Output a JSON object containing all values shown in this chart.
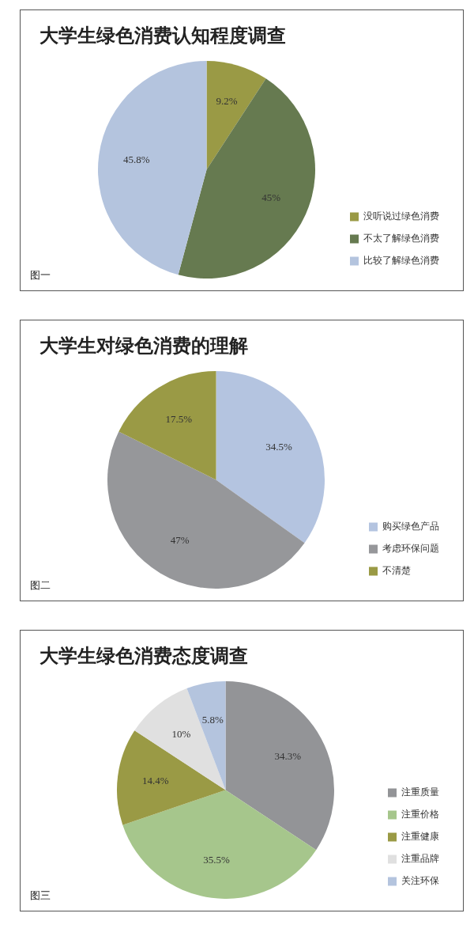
{
  "chart_data": [
    {
      "type": "pie",
      "title": "大学生绿色消费认知程度调查",
      "categories": [
        "没听说过绿色消费",
        "不太了解绿色消费",
        "比较了解绿色消费"
      ],
      "values": [
        9.2,
        45,
        45.8
      ],
      "value_labels": [
        "9.2%",
        "45%",
        "45.8%"
      ],
      "colors": [
        "#9a9a45",
        "#667a50",
        "#b4c4de"
      ],
      "legend": "bottom right",
      "annotations": [
        "图一"
      ]
    },
    {
      "type": "pie",
      "title": "大学生对绿色消费的理解",
      "categories": [
        "购买绿色产品",
        "考虑环保问题",
        "不清楚"
      ],
      "values": [
        34.5,
        47,
        17.5
      ],
      "value_labels": [
        "34.5%",
        "47%",
        "17.5%"
      ],
      "colors": [
        "#b4c4e0",
        "#96979a",
        "#9a9a45"
      ],
      "legend": "bottom right",
      "annotations": [
        "图二"
      ]
    },
    {
      "type": "pie",
      "title": "大学生绿色消费态度调查",
      "categories": [
        "注重质量",
        "注重价格",
        "注重健康",
        "注重品牌",
        "关注环保"
      ],
      "values": [
        34.3,
        35.5,
        14.4,
        10,
        5.8
      ],
      "value_labels": [
        "34.3%",
        "35.5%",
        "14.4%",
        "10%",
        "5.8%"
      ],
      "colors": [
        "#939497",
        "#a6c68c",
        "#9a9a45",
        "#e0e0e0",
        "#b4c4de"
      ],
      "legend": "bottom right",
      "annotations": [
        "图三"
      ]
    }
  ]
}
